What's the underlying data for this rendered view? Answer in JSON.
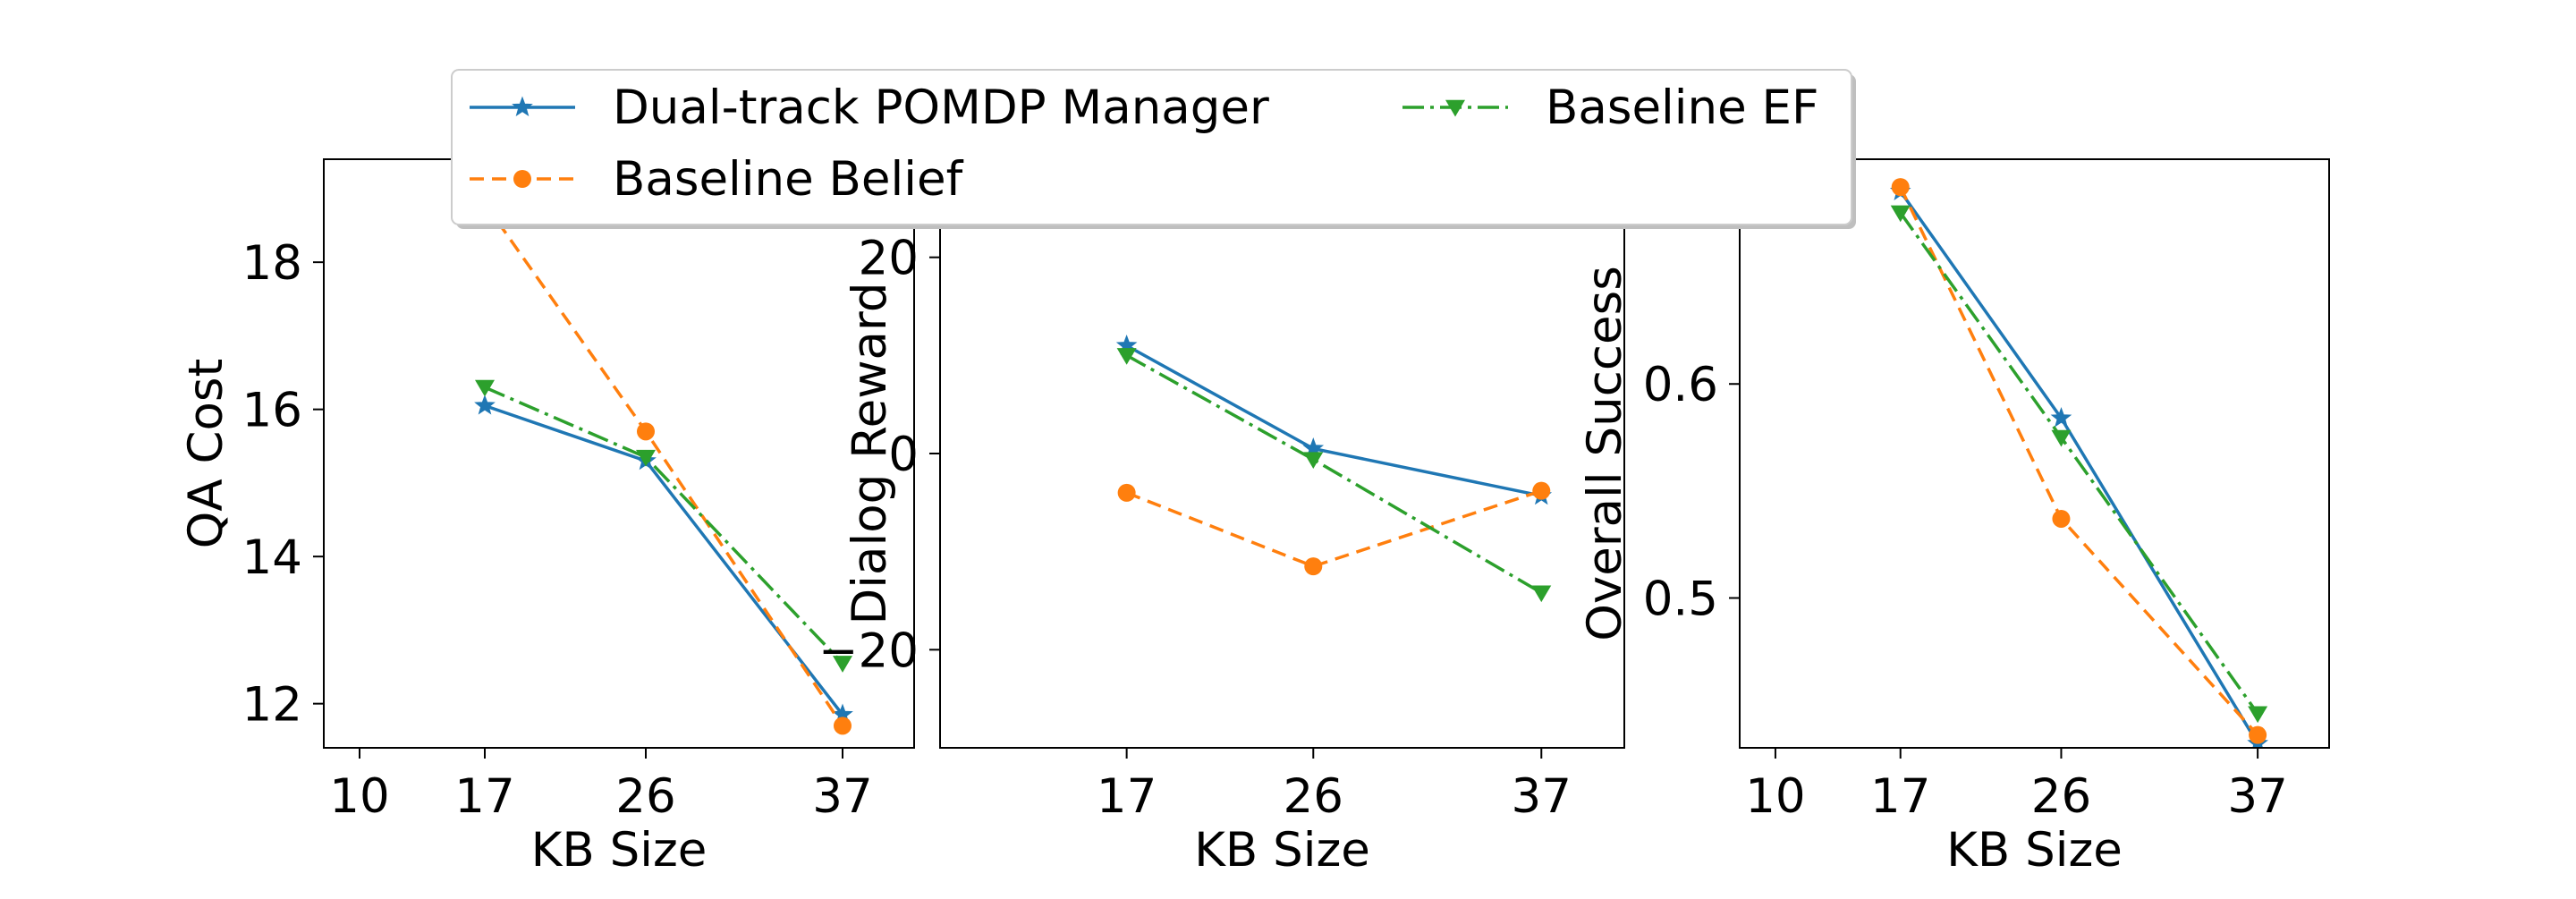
{
  "chart_data": [
    {
      "type": "line",
      "xlabel": "KB Size",
      "ylabel": "QA Cost",
      "x_ticks": [
        "10",
        "17",
        "26",
        "37"
      ],
      "y_ticks": [
        "12",
        "14",
        "16",
        "18"
      ],
      "xlim": [
        8,
        41
      ],
      "ylim": [
        11.4,
        19.4
      ],
      "series": [
        {
          "name": "Dual-track POMDP Manager",
          "x": [
            17,
            26,
            37
          ],
          "values": [
            16.05,
            15.3,
            11.85
          ]
        },
        {
          "name": "Baseline Belief",
          "x": [
            17,
            26,
            37
          ],
          "values": [
            18.8,
            15.7,
            11.7
          ]
        },
        {
          "name": "Baseline EF",
          "x": [
            17,
            26,
            37
          ],
          "values": [
            16.3,
            15.35,
            12.55
          ]
        }
      ]
    },
    {
      "type": "line",
      "xlabel": "KB Size",
      "ylabel": "Dialog Reward",
      "x_ticks": [
        "17",
        "26",
        "37"
      ],
      "y_ticks": [
        "20",
        "0",
        "−20"
      ],
      "xlim": [
        8,
        41
      ],
      "ylim": [
        -30,
        30
      ],
      "series": [
        {
          "name": "Dual-track POMDP Manager",
          "x": [
            17,
            26,
            37
          ],
          "values": [
            11,
            0.5,
            -4.3
          ]
        },
        {
          "name": "Baseline Belief",
          "x": [
            17,
            26,
            37
          ],
          "values": [
            -4,
            -11.5,
            -3.8
          ]
        },
        {
          "name": "Baseline EF",
          "x": [
            17,
            26,
            37
          ],
          "values": [
            10,
            -0.6,
            -14.2
          ]
        }
      ]
    },
    {
      "type": "line",
      "xlabel": "KB Size",
      "ylabel": "Overall Success",
      "x_ticks": [
        "10",
        "17",
        "26",
        "37"
      ],
      "y_ticks": [
        "0.5",
        "0.6"
      ],
      "xlim": [
        8,
        41
      ],
      "ylim": [
        0.43,
        0.705
      ],
      "series": [
        {
          "name": "Dual-track POMDP Manager",
          "x": [
            17,
            26,
            37
          ],
          "values": [
            0.69,
            0.584,
            0.432
          ]
        },
        {
          "name": "Baseline Belief",
          "x": [
            17,
            26,
            37
          ],
          "values": [
            0.692,
            0.537,
            0.436
          ]
        },
        {
          "name": "Baseline EF",
          "x": [
            17,
            26,
            37
          ],
          "values": [
            0.68,
            0.575,
            0.446
          ]
        }
      ]
    }
  ],
  "series_styles": [
    {
      "color": "#1f77b4",
      "dash": "",
      "marker": "star"
    },
    {
      "color": "#ff7f0e",
      "dash": "16 9",
      "marker": "circle"
    },
    {
      "color": "#2ca02c",
      "dash": "24 7 4 7",
      "marker": "triangle-down"
    }
  ],
  "legend": {
    "placement": "top-center",
    "entries": [
      "Dual-track POMDP Manager",
      "Baseline Belief",
      "Baseline EF"
    ]
  }
}
